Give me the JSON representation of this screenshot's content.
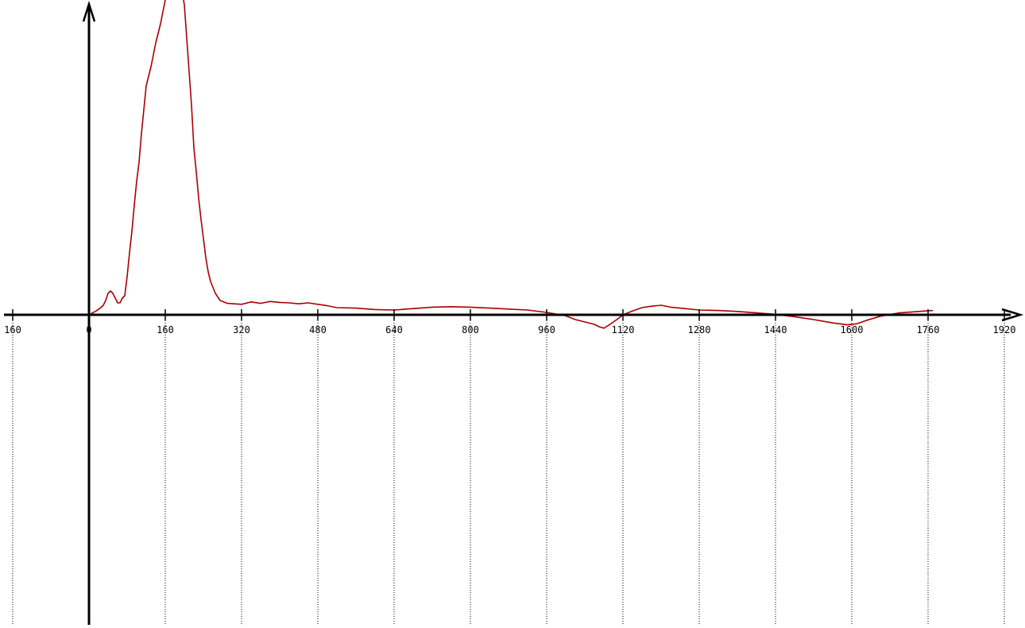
{
  "chart_data": {
    "type": "line",
    "title": "",
    "xlabel": "",
    "ylabel": "",
    "x_tick_labels": [
      "160",
      "0",
      "160",
      "320",
      "480",
      "640",
      "800",
      "960",
      "1120",
      "1280",
      "1440",
      "1600",
      "1760",
      "1920"
    ],
    "x_tick_values": [
      -160,
      0,
      160,
      320,
      480,
      640,
      800,
      960,
      1120,
      1280,
      1440,
      1600,
      1760,
      1920
    ],
    "xlim": [
      -180,
      1950
    ],
    "ylim": [
      -660,
      660
    ],
    "grid": "vertical dotted lines at x ticks (lower half)",
    "legend": "none",
    "series": [
      {
        "color": "#aa0000",
        "points": [
          [
            0,
            0
          ],
          [
            15,
            8
          ],
          [
            25,
            15
          ],
          [
            30,
            20
          ],
          [
            35,
            30
          ],
          [
            40,
            45
          ],
          [
            45,
            50
          ],
          [
            50,
            45
          ],
          [
            55,
            35
          ],
          [
            60,
            25
          ],
          [
            65,
            25
          ],
          [
            70,
            35
          ],
          [
            75,
            40
          ],
          [
            80,
            80
          ],
          [
            85,
            130
          ],
          [
            90,
            175
          ],
          [
            95,
            230
          ],
          [
            100,
            280
          ],
          [
            105,
            320
          ],
          [
            110,
            380
          ],
          [
            115,
            430
          ],
          [
            120,
            480
          ],
          [
            130,
            520
          ],
          [
            140,
            570
          ],
          [
            150,
            610
          ],
          [
            160,
            660
          ],
          [
            170,
            690
          ],
          [
            180,
            710
          ],
          [
            190,
            700
          ],
          [
            195,
            680
          ],
          [
            200,
            650
          ],
          [
            205,
            580
          ],
          [
            210,
            510
          ],
          [
            215,
            440
          ],
          [
            220,
            350
          ],
          [
            225,
            300
          ],
          [
            230,
            245
          ],
          [
            235,
            200
          ],
          [
            240,
            160
          ],
          [
            245,
            120
          ],
          [
            250,
            90
          ],
          [
            255,
            70
          ],
          [
            265,
            45
          ],
          [
            275,
            30
          ],
          [
            290,
            24
          ],
          [
            320,
            22
          ],
          [
            340,
            27
          ],
          [
            360,
            24
          ],
          [
            380,
            28
          ],
          [
            400,
            26
          ],
          [
            420,
            25
          ],
          [
            440,
            23
          ],
          [
            460,
            25
          ],
          [
            480,
            22
          ],
          [
            500,
            19
          ],
          [
            520,
            15
          ],
          [
            560,
            14
          ],
          [
            600,
            11
          ],
          [
            640,
            10
          ],
          [
            680,
            13
          ],
          [
            720,
            16
          ],
          [
            760,
            17
          ],
          [
            800,
            16
          ],
          [
            840,
            14
          ],
          [
            880,
            12
          ],
          [
            920,
            10
          ],
          [
            960,
            5
          ],
          [
            1000,
            -2
          ],
          [
            1020,
            -10
          ],
          [
            1040,
            -15
          ],
          [
            1060,
            -20
          ],
          [
            1070,
            -25
          ],
          [
            1080,
            -28
          ],
          [
            1090,
            -22
          ],
          [
            1100,
            -15
          ],
          [
            1110,
            -8
          ],
          [
            1120,
            0
          ],
          [
            1140,
            8
          ],
          [
            1160,
            15
          ],
          [
            1180,
            18
          ],
          [
            1200,
            20
          ],
          [
            1220,
            16
          ],
          [
            1240,
            14
          ],
          [
            1280,
            10
          ],
          [
            1320,
            9
          ],
          [
            1360,
            7
          ],
          [
            1400,
            4
          ],
          [
            1440,
            1
          ],
          [
            1480,
            -4
          ],
          [
            1520,
            -10
          ],
          [
            1560,
            -17
          ],
          [
            1590,
            -21
          ],
          [
            1610,
            -19
          ],
          [
            1630,
            -12
          ],
          [
            1660,
            -3
          ],
          [
            1700,
            4
          ],
          [
            1740,
            7
          ],
          [
            1770,
            9
          ]
        ]
      }
    ]
  }
}
